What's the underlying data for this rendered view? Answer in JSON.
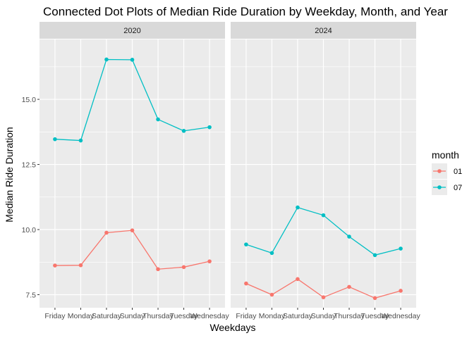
{
  "chart_data": {
    "type": "line",
    "title": "Connected Dot Plots of Median Ride Duration by Weekday, Month, and Year",
    "xlabel": "Weekdays",
    "ylabel": "Median Ride Duration",
    "categories": [
      "Friday",
      "Monday",
      "Saturday",
      "Sunday",
      "Thursday",
      "Tuesday",
      "Wednesday"
    ],
    "ylim": [
      7.0,
      17.3
    ],
    "yticks": [
      7.5,
      10.0,
      12.5,
      15.0
    ],
    "ytick_labels": [
      "7.5",
      "10.0",
      "12.5",
      "15.0"
    ],
    "grid": true,
    "legend": {
      "title": "month",
      "placement": "right",
      "entries": [
        {
          "label": "01",
          "color": "#F8766D"
        },
        {
          "label": "07",
          "color": "#00BFC4"
        }
      ]
    },
    "panels": [
      {
        "strip": "2020",
        "series": [
          {
            "name": "01",
            "color": "#F8766D",
            "values": [
              8.62,
              8.63,
              9.88,
              9.97,
              8.48,
              8.56,
              8.78
            ]
          },
          {
            "name": "07",
            "color": "#00BFC4",
            "values": [
              13.47,
              13.42,
              16.53,
              16.52,
              14.23,
              13.79,
              13.93
            ]
          }
        ]
      },
      {
        "strip": "2024",
        "series": [
          {
            "name": "01",
            "color": "#F8766D",
            "values": [
              7.93,
              7.5,
              8.1,
              7.4,
              7.8,
              7.37,
              7.65
            ]
          },
          {
            "name": "07",
            "color": "#00BFC4",
            "values": [
              9.43,
              9.1,
              10.85,
              10.55,
              9.73,
              9.02,
              9.27
            ]
          }
        ]
      }
    ]
  }
}
